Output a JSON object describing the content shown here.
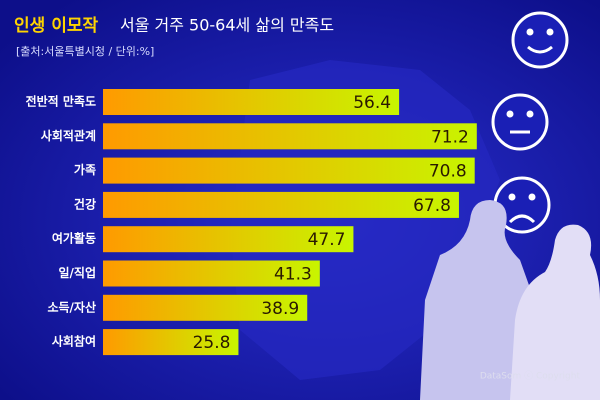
{
  "chart_data": {
    "type": "bar",
    "orientation": "horizontal",
    "title_highlight": "인생 이모작",
    "title": "서울 거주 50-64세 삶의 만족도",
    "subtitle": "[출처:서울특별시청 / 단위:%]",
    "credit": "DataSom ⓒ Copyright",
    "categories": [
      "전반적 만족도",
      "사회적관계",
      "가족",
      "건강",
      "여가활동",
      "일/직업",
      "소득/자산",
      "사회참여"
    ],
    "values": [
      56.4,
      71.2,
      70.8,
      67.8,
      47.7,
      41.3,
      38.9,
      25.8
    ],
    "color_start": "#ff9a00",
    "color_end": "#c8f500"
  }
}
